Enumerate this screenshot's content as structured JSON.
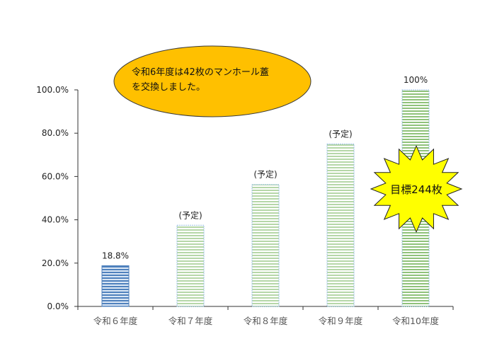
{
  "chart_data": {
    "type": "bar",
    "categories": [
      "令和６年度",
      "令和７年度",
      "令和８年度",
      "令和９年度",
      "令和10年度"
    ],
    "values": [
      18.8,
      37.5,
      56.3,
      75.0,
      100.0
    ],
    "data_labels": [
      "18.8%",
      "(予定)",
      "(予定)",
      "(予定)",
      "100%"
    ],
    "y_ticks": [
      "0.0%",
      "20.0%",
      "40.0%",
      "60.0%",
      "80.0%",
      "100.0%"
    ],
    "ylim": [
      0,
      100
    ],
    "grid": false,
    "colors": {
      "actual": "#4f81bd",
      "actual_light": "#dbe7f5",
      "planned": "#b6d7a8",
      "planned_final": "#8fc27a",
      "planned_light": "#ffffff",
      "callout": "#ffc000",
      "star": "#ffff00"
    },
    "callout": {
      "lines": [
        "令和6年度は42枚のマンホール蓋",
        "を交換しました。"
      ]
    },
    "star_label": "目標244枚"
  }
}
